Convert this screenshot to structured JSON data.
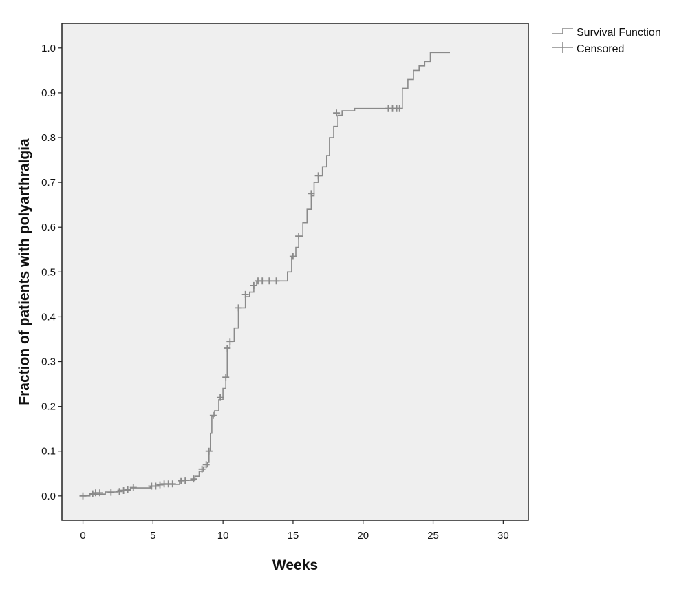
{
  "chart_data": {
    "type": "line",
    "title": "",
    "xlabel": "Weeks",
    "ylabel": "Fraction of patients with polyarthralgia",
    "xlim": [
      -1.5,
      31.8
    ],
    "ylim": [
      -0.054,
      1.055
    ],
    "xticks": [
      0,
      5,
      10,
      15,
      20,
      25,
      30
    ],
    "yticks": [
      0.0,
      0.1,
      0.2,
      0.3,
      0.4,
      0.5,
      0.6,
      0.7,
      0.8,
      0.9,
      1.0
    ],
    "xtick_labels": [
      "0",
      "5",
      "10",
      "15",
      "20",
      "25",
      "30"
    ],
    "ytick_labels": [
      "0.0",
      "0.1",
      "0.2",
      "0.3",
      "0.4",
      "0.5",
      "0.6",
      "0.7",
      "0.8",
      "0.9",
      "1.0"
    ],
    "grid": false,
    "legend_position": "top-right-outside",
    "colors": {
      "plot_background": "#efefef",
      "line": "#8a8a8a",
      "frame": "#222222"
    },
    "legend": [
      {
        "label": "Survival Function",
        "marker": "step"
      },
      {
        "label": "Censored",
        "marker": "plus"
      }
    ],
    "series": [
      {
        "name": "Survival Function",
        "step_points": [
          [
            0.0,
            0.0
          ],
          [
            0.5,
            0.004
          ],
          [
            1.6,
            0.009
          ],
          [
            2.5,
            0.013
          ],
          [
            3.4,
            0.018
          ],
          [
            4.8,
            0.022
          ],
          [
            5.4,
            0.026
          ],
          [
            6.9,
            0.035
          ],
          [
            7.6,
            0.035
          ],
          [
            8.0,
            0.044
          ],
          [
            8.3,
            0.055
          ],
          [
            8.6,
            0.065
          ],
          [
            8.9,
            0.075
          ],
          [
            9.0,
            0.1
          ],
          [
            9.1,
            0.14
          ],
          [
            9.2,
            0.178
          ],
          [
            9.4,
            0.19
          ],
          [
            9.7,
            0.215
          ],
          [
            10.0,
            0.24
          ],
          [
            10.2,
            0.265
          ],
          [
            10.3,
            0.33
          ],
          [
            10.5,
            0.345
          ],
          [
            10.8,
            0.375
          ],
          [
            11.1,
            0.42
          ],
          [
            11.6,
            0.445
          ],
          [
            11.9,
            0.455
          ],
          [
            12.2,
            0.47
          ],
          [
            12.4,
            0.48
          ],
          [
            14.2,
            0.48
          ],
          [
            14.6,
            0.5
          ],
          [
            14.9,
            0.535
          ],
          [
            15.2,
            0.555
          ],
          [
            15.4,
            0.58
          ],
          [
            15.7,
            0.61
          ],
          [
            16.0,
            0.64
          ],
          [
            16.3,
            0.67
          ],
          [
            16.5,
            0.7
          ],
          [
            16.8,
            0.715
          ],
          [
            17.1,
            0.735
          ],
          [
            17.4,
            0.76
          ],
          [
            17.6,
            0.8
          ],
          [
            17.9,
            0.825
          ],
          [
            18.2,
            0.85
          ],
          [
            18.5,
            0.86
          ],
          [
            19.4,
            0.865
          ],
          [
            22.8,
            0.91
          ],
          [
            23.2,
            0.93
          ],
          [
            23.6,
            0.95
          ],
          [
            24.0,
            0.96
          ],
          [
            24.4,
            0.97
          ],
          [
            24.8,
            0.99
          ],
          [
            26.2,
            0.99
          ]
        ],
        "censored": [
          [
            0.0,
            0.0
          ],
          [
            0.7,
            0.005
          ],
          [
            0.9,
            0.007
          ],
          [
            1.2,
            0.007
          ],
          [
            2.0,
            0.008
          ],
          [
            2.6,
            0.01
          ],
          [
            2.9,
            0.012
          ],
          [
            3.2,
            0.015
          ],
          [
            3.6,
            0.019
          ],
          [
            4.9,
            0.022
          ],
          [
            5.2,
            0.022
          ],
          [
            5.5,
            0.025
          ],
          [
            5.8,
            0.027
          ],
          [
            6.1,
            0.027
          ],
          [
            6.4,
            0.027
          ],
          [
            7.0,
            0.034
          ],
          [
            7.3,
            0.035
          ],
          [
            7.9,
            0.038
          ],
          [
            8.5,
            0.06
          ],
          [
            8.8,
            0.07
          ],
          [
            9.0,
            0.1
          ],
          [
            9.3,
            0.18
          ],
          [
            9.8,
            0.22
          ],
          [
            10.2,
            0.265
          ],
          [
            10.3,
            0.33
          ],
          [
            10.5,
            0.345
          ],
          [
            11.1,
            0.42
          ],
          [
            11.6,
            0.45
          ],
          [
            12.2,
            0.47
          ],
          [
            12.5,
            0.48
          ],
          [
            12.8,
            0.48
          ],
          [
            13.3,
            0.48
          ],
          [
            13.8,
            0.48
          ],
          [
            15.0,
            0.535
          ],
          [
            15.4,
            0.58
          ],
          [
            16.3,
            0.675
          ],
          [
            16.8,
            0.715
          ],
          [
            18.1,
            0.855
          ],
          [
            21.8,
            0.865
          ],
          [
            22.1,
            0.865
          ],
          [
            22.4,
            0.865
          ],
          [
            22.6,
            0.865
          ]
        ]
      }
    ]
  }
}
